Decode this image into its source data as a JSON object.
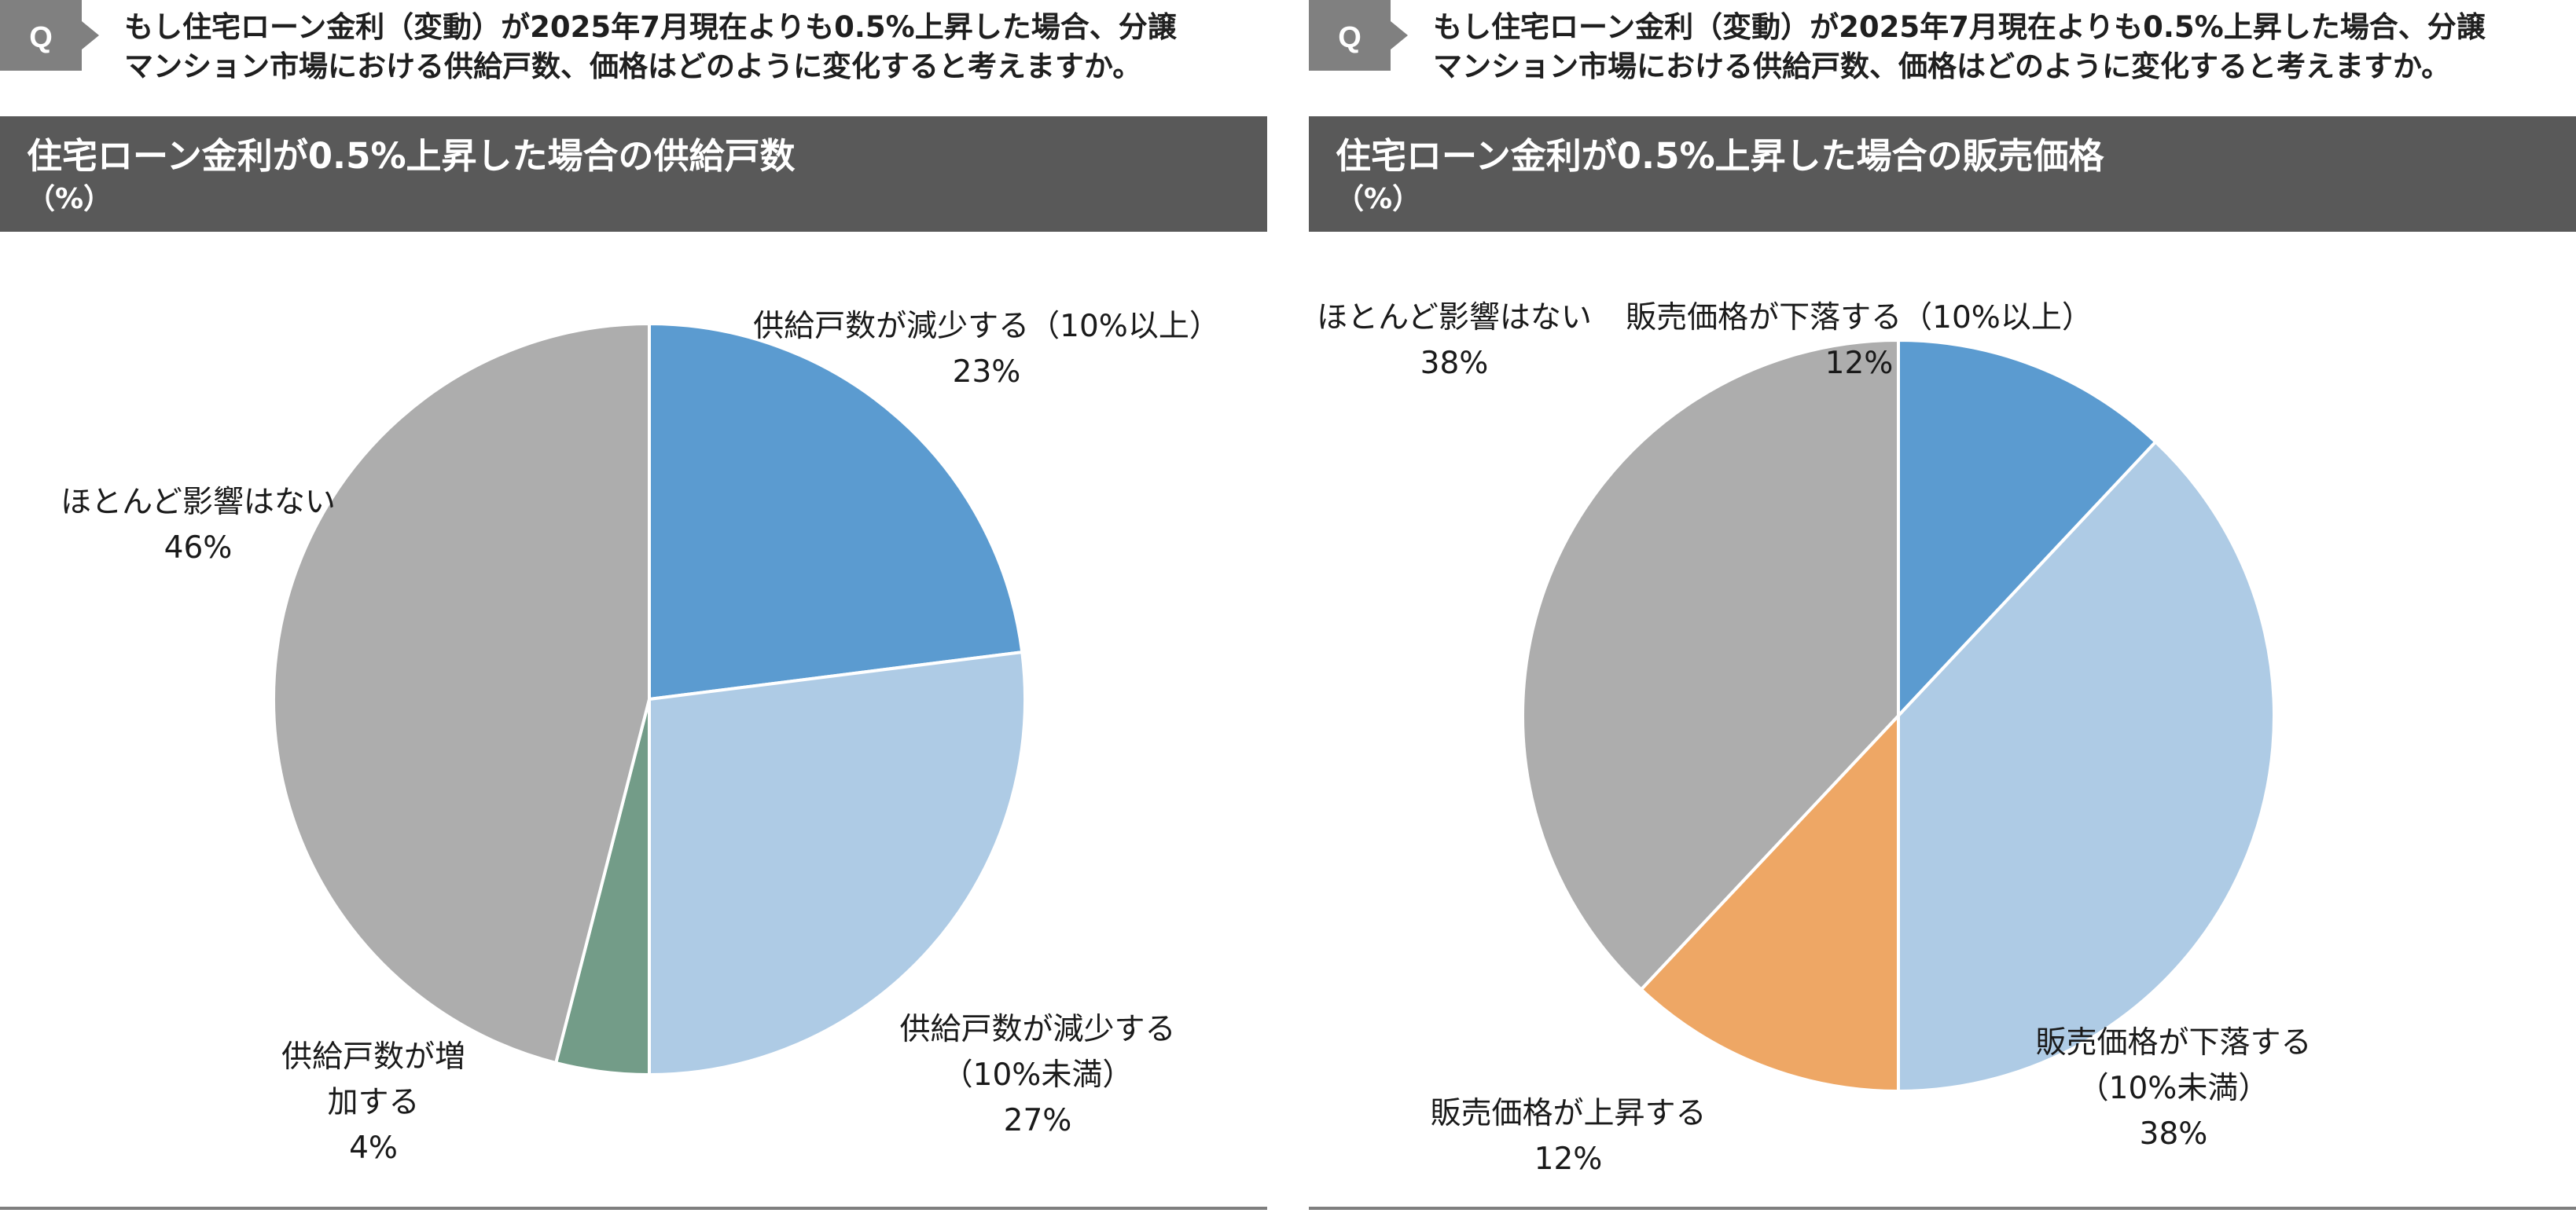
{
  "colors": {
    "dark_blue": "#5b9bd0",
    "light_blue": "#aecbe5",
    "green": "#739c88",
    "gray": "#adadad",
    "orange": "#eea765",
    "header_bg": "#595959",
    "badge_bg": "#808080"
  },
  "panels": [
    {
      "question_badge": "Q",
      "question_lines": [
        "もし住宅ローン金利（変動）が2025年7月現在よりも0.5%上昇した場合、分譲",
        "マンション市場における供給戸数、価格はどのように変化すると考えますか。"
      ],
      "title": "住宅ローン金利が0.5%上昇した場合の供給戸数",
      "unit": "（%）"
    },
    {
      "question_badge": "Q",
      "question_lines": [
        "もし住宅ローン金利（変動）が2025年7月現在よりも0.5%上昇した場合、分譲",
        "マンション市場における供給戸数、価格はどのように変化すると考えますか。"
      ],
      "title": "住宅ローン金利が0.5%上昇した場合の販売価格",
      "unit": "（%）"
    }
  ],
  "chart_data": [
    {
      "type": "pie",
      "title": "住宅ローン金利が0.5%上昇した場合の供給戸数",
      "unit": "（%）",
      "start": "12 o'clock, clockwise",
      "slices": [
        {
          "label_lines": [
            "供給戸数が減少する（10%以上）"
          ],
          "pct": "23%",
          "value": 23,
          "color": "#5b9bd0"
        },
        {
          "label_lines": [
            "供給戸数が減少する",
            "（10%未満）"
          ],
          "pct": "27%",
          "value": 27,
          "color": "#aecbe5"
        },
        {
          "label_lines": [
            "供給戸数が増",
            "加する"
          ],
          "pct": "4%",
          "value": 4,
          "color": "#739c88"
        },
        {
          "label_lines": [
            "ほとんど影響はない"
          ],
          "pct": "46%",
          "value": 46,
          "color": "#adadad"
        }
      ]
    },
    {
      "type": "pie",
      "title": "住宅ローン金利が0.5%上昇した場合の販売価格",
      "unit": "（%）",
      "start": "12 o'clock, clockwise",
      "slices": [
        {
          "label_lines": [
            "販売価格が下落する（10%以上）"
          ],
          "pct": "12%",
          "value": 12,
          "color": "#5b9bd0"
        },
        {
          "label_lines": [
            "販売価格が下落する",
            "（10%未満）"
          ],
          "pct": "38%",
          "value": 38,
          "color": "#aecbe5"
        },
        {
          "label_lines": [
            "販売価格が上昇する"
          ],
          "pct": "12%",
          "value": 12,
          "color": "#eea765"
        },
        {
          "label_lines": [
            "ほとんど影響はない"
          ],
          "pct": "38%",
          "value": 38,
          "color": "#adadad"
        }
      ]
    }
  ]
}
